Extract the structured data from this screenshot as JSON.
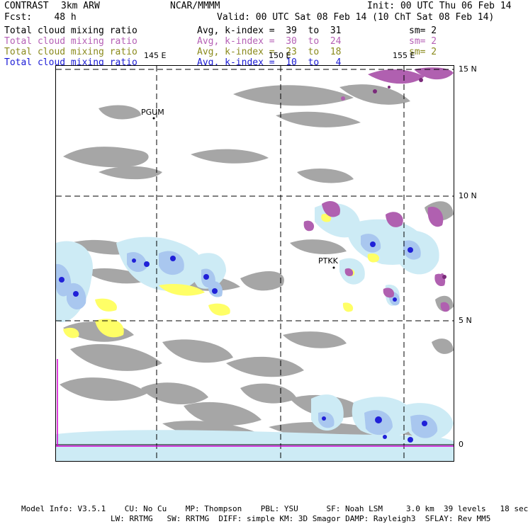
{
  "header": {
    "model_name": "CONTRAST",
    "resolution": "3km ARW",
    "institution": "NCAR/MMMM",
    "init": "Init: 00 UTC Thu 06 Feb 14",
    "forecast": "Fcst:    48 h",
    "valid": "Valid: 00 UTC Sat 08 Feb 14 (10 ChT Sat 08 Feb 14)"
  },
  "colors": {
    "black": "#000000",
    "purple": "#b560b5",
    "olive": "#8a8a1c",
    "blue": "#1a1ad6",
    "magenta": "#d400d4"
  },
  "legend": [
    {
      "name": "Total cloud mixing ratio",
      "stat": "Avg, k-index =  39  to  31",
      "smooth": "sm= 2",
      "color": "#000000"
    },
    {
      "name": "Total cloud mixing ratio",
      "stat": "Avg, k-index =  30  to  24",
      "smooth": "sm= 2",
      "color": "#b560b5"
    },
    {
      "name": "Total cloud mixing ratio",
      "stat": "Avg, k-index =  23  to  18",
      "smooth": "sm= 2",
      "color": "#8a8a1c"
    },
    {
      "name": "Total cloud mixing ratio",
      "stat": "Avg, k-index =  10  to   4",
      "smooth": "",
      "color": "#1a1ad6"
    }
  ],
  "map": {
    "lon_labels": [
      "145 E",
      "150 E",
      "155 E"
    ],
    "lat_labels": [
      "15 N",
      "10 N",
      "5 N",
      "0"
    ],
    "stations": [
      "PGUM",
      "PTKK"
    ]
  },
  "footer": {
    "line1": "Model Info: V3.5.1    CU: No Cu    MP: Thompson    PBL: YSU      SF: Noah LSM     3.0 km  39 levels   18 sec",
    "line2": "LW: RRTMG   SW: RRTMG  DIFF: simple KM: 3D Smagor DAMP: Rayleigh3  SFLAY: Rev MM5"
  }
}
